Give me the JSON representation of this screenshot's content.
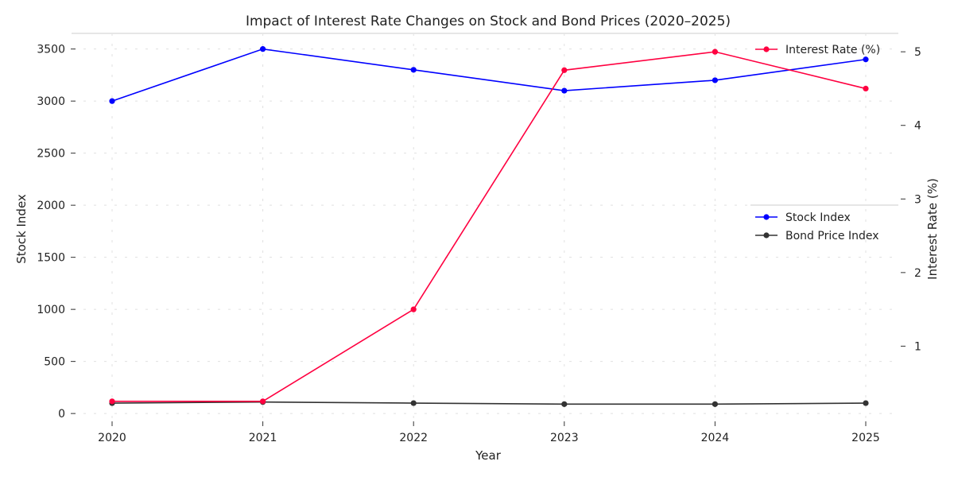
{
  "chart_data": {
    "type": "line",
    "title": "Impact of Interest Rate Changes on Stock and Bond Prices (2020–2025)",
    "xlabel": "Year",
    "ylabel_left": "Stock Index",
    "ylabel_right": "Interest Rate (%)",
    "x": [
      "2020",
      "2021",
      "2022",
      "2023",
      "2024",
      "2025"
    ],
    "ylim_left": [
      -60,
      3650
    ],
    "ylim_right": [
      0.0,
      5.25
    ],
    "yticks_left": [
      "0",
      "500",
      "1000",
      "1500",
      "2000",
      "2500",
      "3000",
      "3500"
    ],
    "yticks_right": [
      "1",
      "2",
      "3",
      "4",
      "5"
    ],
    "grid": true,
    "series": [
      {
        "name": "Stock Index",
        "axis": "left",
        "color": "#0000ff",
        "values": [
          3000,
          3500,
          3300,
          3100,
          3200,
          3400
        ]
      },
      {
        "name": "Bond Price Index",
        "axis": "left",
        "color": "#333333",
        "values": [
          100,
          110,
          100,
          90,
          90,
          100
        ]
      },
      {
        "name": "Interest Rate (%)",
        "axis": "right",
        "color": "#ff0040",
        "values": [
          0.25,
          0.25,
          1.5,
          4.75,
          5.0,
          4.5
        ]
      }
    ],
    "legend_right": "top-right",
    "legend_left": "center-right"
  }
}
